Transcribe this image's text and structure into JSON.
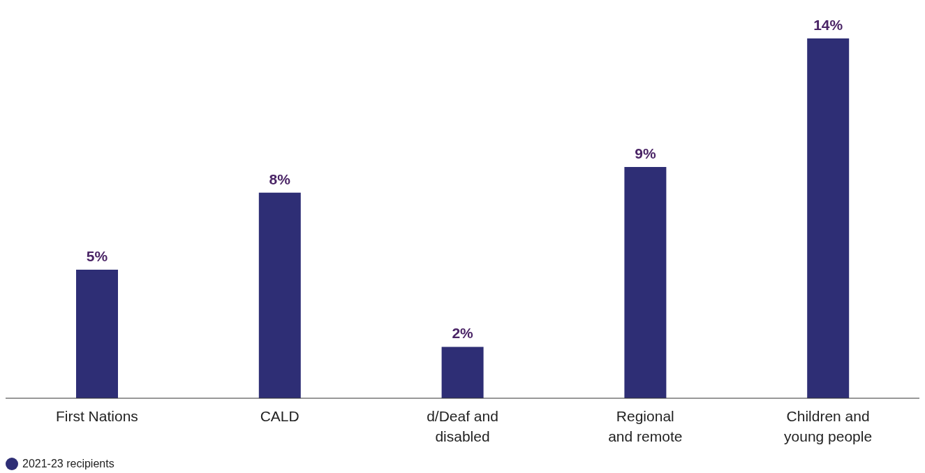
{
  "chart_data": {
    "type": "bar",
    "categories": [
      "First Nations",
      "CALD",
      "d/Deaf and disabled",
      "Regional and remote",
      "Children and young people"
    ],
    "series": [
      {
        "name": "2021-23 recipients",
        "color": "#2e2e75",
        "values": [
          5,
          8,
          2,
          9,
          14
        ],
        "value_labels": [
          "5%",
          "8%",
          "2%",
          "9%",
          "14%"
        ]
      }
    ],
    "legend": "bottom left",
    "grid": false
  }
}
